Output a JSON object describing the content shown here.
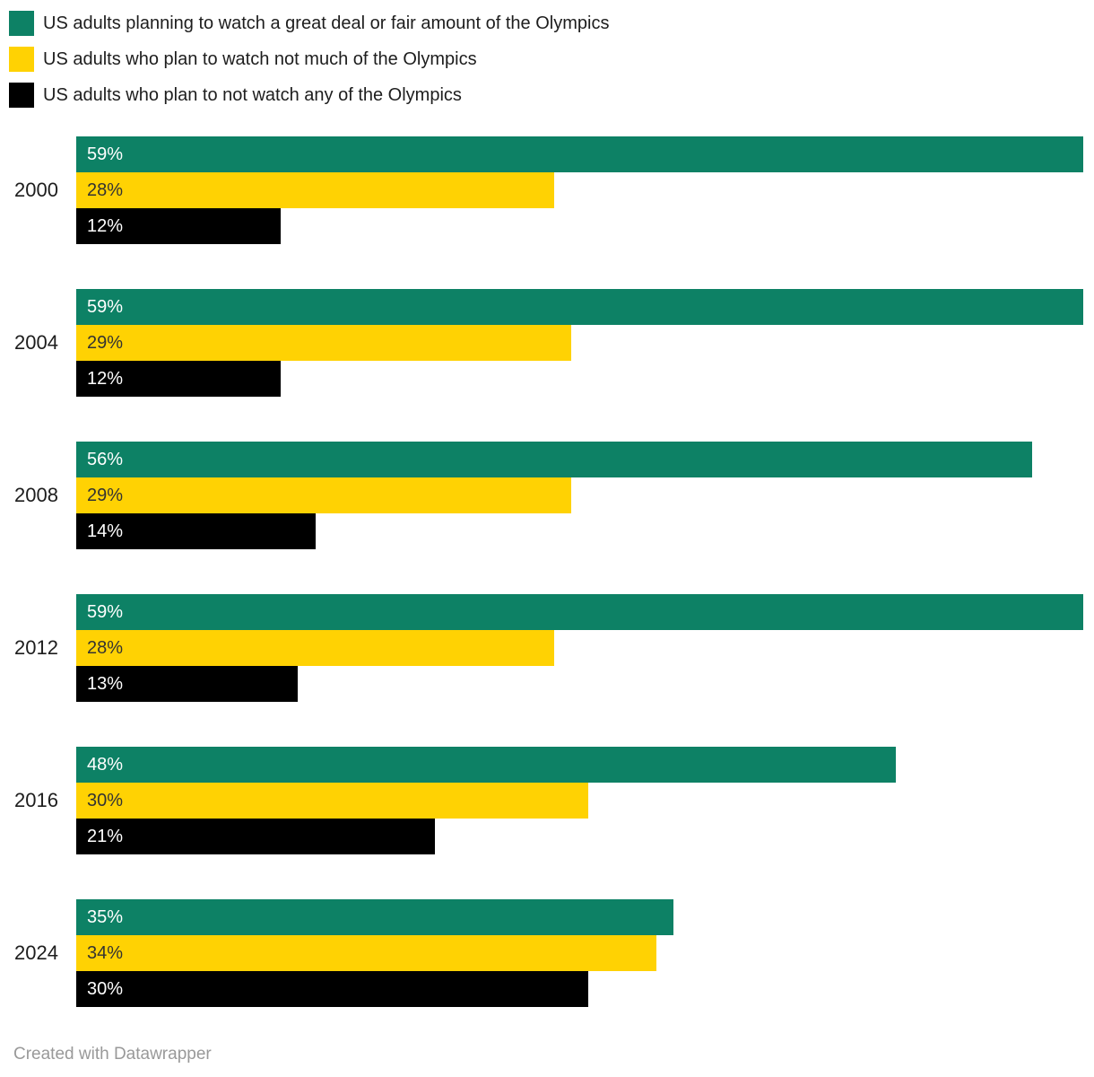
{
  "legend": {
    "items": [
      {
        "label": "US adults planning to watch a great deal or fair amount of the Olympics",
        "color": "#0d8165"
      },
      {
        "label": "US adults who plan to watch not much of the Olympics",
        "color": "#ffd203"
      },
      {
        "label": "US adults who plan to not watch any of the Olympics",
        "color": "#000000"
      }
    ]
  },
  "chart_data": {
    "type": "bar",
    "orientation": "horizontal",
    "categories": [
      "2000",
      "2004",
      "2008",
      "2012",
      "2016",
      "2024"
    ],
    "series": [
      {
        "name": "US adults planning to watch a great deal or fair amount of the Olympics",
        "color": "#0d8165",
        "label_color": "#ffffff",
        "values": [
          59,
          59,
          56,
          59,
          48,
          35
        ]
      },
      {
        "name": "US adults who plan to watch not much of the Olympics",
        "color": "#ffd203",
        "label_color": "#333333",
        "values": [
          28,
          29,
          29,
          28,
          30,
          34
        ]
      },
      {
        "name": "US adults who plan to not watch any of the Olympics",
        "color": "#000000",
        "label_color": "#ffffff",
        "values": [
          12,
          12,
          14,
          13,
          21,
          30
        ]
      }
    ],
    "value_suffix": "%",
    "xlim": [
      0,
      59
    ],
    "grid": false,
    "legend_position": "top",
    "axis_labels_visible": false
  },
  "footer": {
    "credit": "Created with Datawrapper"
  }
}
